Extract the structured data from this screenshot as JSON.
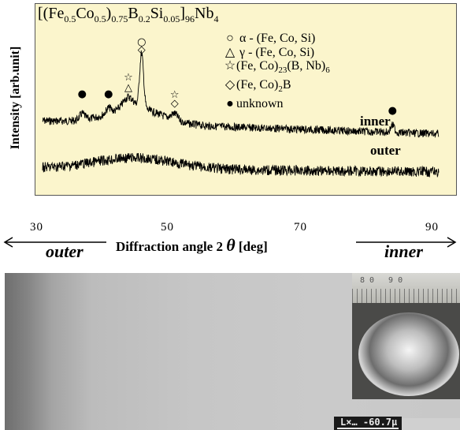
{
  "formula": {
    "open": "[(Fe",
    "s1": "0.5",
    "t1": "Co",
    "s2": "0.5",
    "t2": ")",
    "s3": "0.75",
    "t3": "B",
    "s4": "0.2",
    "t4": "Si",
    "s5": "0.05",
    "t5": "]",
    "s6": "96",
    "t6": "Nb",
    "s7": "4"
  },
  "y_axis_label": "Intensity [arb.unit]",
  "legend": [
    {
      "symbol": "○",
      "text": "α  - (Fe, Co, Si)"
    },
    {
      "symbol": "△",
      "text": "γ  - (Fe, Co, Si)"
    },
    {
      "symbol": "☆",
      "text_a": "(Fe, Co)",
      "sub_a": "23",
      "text_b": "(B, Nb)",
      "sub_b": "6"
    },
    {
      "symbol": "◇",
      "text_a": "(Fe, Co)",
      "sub_a": "2",
      "text_b": "B"
    },
    {
      "symbol": "●",
      "text": "unknown"
    }
  ],
  "curve_labels": {
    "inner": "inner",
    "outer": "outer"
  },
  "x_ticks": [
    "30",
    "50",
    "70",
    "90"
  ],
  "x_axis_label": "Diffraction angle 2",
  "x_axis_symbol": "θ",
  "x_axis_unit": " [deg]",
  "direction_labels": {
    "outer": "outer",
    "inner": "inner"
  },
  "photo": {
    "ruler_numbers": "80  90",
    "scale_bar_text": "L×…  -60.7µ"
  },
  "colors": {
    "plot_background": "#fbf5cc",
    "curve": "#000000"
  },
  "chart_data": {
    "type": "line",
    "title": "",
    "xlabel": "Diffraction angle 2θ [deg]",
    "ylabel": "Intensity [arb.unit]",
    "xlim": [
      30,
      90
    ],
    "x_ticks": [
      30,
      50,
      70,
      90
    ],
    "grid": false,
    "legend_position": "top-right",
    "series": [
      {
        "name": "inner",
        "peaks": [
          {
            "x": 36,
            "phase": "unknown"
          },
          {
            "x": 40,
            "phase": "unknown"
          },
          {
            "x": 43,
            "phase": "γ-(Fe, Co, Si) / (Fe, Co)23(B, Nb)6"
          },
          {
            "x": 45,
            "phase": "α-(Fe, Co, Si) / (Fe, Co)2B"
          },
          {
            "x": 50,
            "phase": "(Fe, Co)23(B, Nb)6 / (Fe, Co)2B"
          },
          {
            "x": 83,
            "phase": "unknown"
          }
        ]
      },
      {
        "name": "outer",
        "peaks": [
          {
            "x": 44,
            "phase": "broad amorphous halo"
          }
        ]
      }
    ]
  }
}
